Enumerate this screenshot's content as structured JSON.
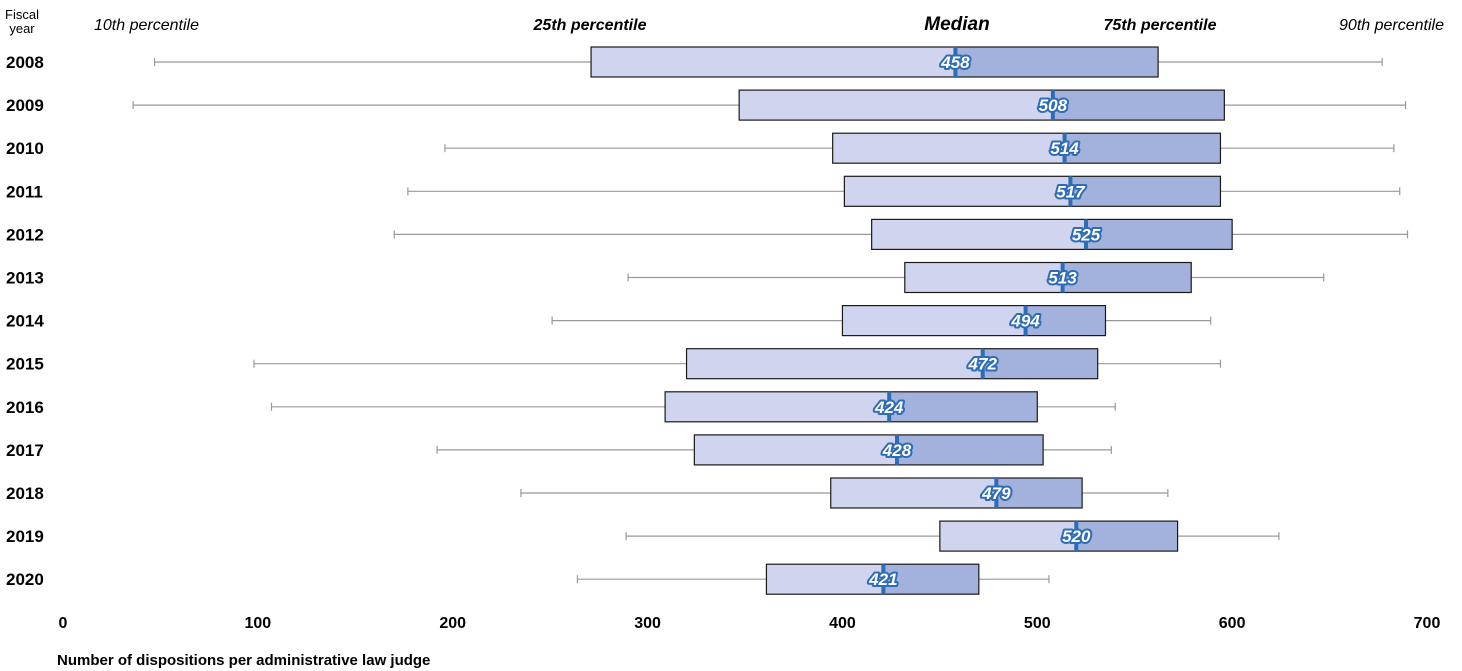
{
  "header": {
    "fiscal_year_line1": "Fiscal",
    "fiscal_year_line2": "year",
    "p10": "10th percentile",
    "p25": "25th percentile",
    "median": "Median",
    "p75": "75th percentile",
    "p90": "90th percentile"
  },
  "colors": {
    "box_lower": "#d0d4ee",
    "box_upper": "#a3b1dd",
    "box_border": "#1a1a1a",
    "whisker": "#999999",
    "median_mark": "#2e6db5"
  },
  "chart_data": {
    "type": "boxplot",
    "orientation": "horizontal",
    "xlabel": "Number of dispositions per administrative law judge",
    "xlim": [
      0,
      700
    ],
    "xticks": [
      0,
      100,
      200,
      300,
      400,
      500,
      600,
      700
    ],
    "rows": [
      {
        "year": "2008",
        "p10": 47,
        "p25": 271,
        "median": 458,
        "p75": 562,
        "p90": 677
      },
      {
        "year": "2009",
        "p10": 36,
        "p25": 347,
        "median": 508,
        "p75": 596,
        "p90": 689
      },
      {
        "year": "2010",
        "p10": 196,
        "p25": 395,
        "median": 514,
        "p75": 594,
        "p90": 683
      },
      {
        "year": "2011",
        "p10": 177,
        "p25": 401,
        "median": 517,
        "p75": 594,
        "p90": 686
      },
      {
        "year": "2012",
        "p10": 170,
        "p25": 415,
        "median": 525,
        "p75": 600,
        "p90": 690
      },
      {
        "year": "2013",
        "p10": 290,
        "p25": 432,
        "median": 513,
        "p75": 579,
        "p90": 647
      },
      {
        "year": "2014",
        "p10": 251,
        "p25": 400,
        "median": 494,
        "p75": 535,
        "p90": 589
      },
      {
        "year": "2015",
        "p10": 98,
        "p25": 320,
        "median": 472,
        "p75": 531,
        "p90": 594
      },
      {
        "year": "2016",
        "p10": 107,
        "p25": 309,
        "median": 424,
        "p75": 500,
        "p90": 540
      },
      {
        "year": "2017",
        "p10": 192,
        "p25": 324,
        "median": 428,
        "p75": 503,
        "p90": 538
      },
      {
        "year": "2018",
        "p10": 235,
        "p25": 394,
        "median": 479,
        "p75": 523,
        "p90": 567
      },
      {
        "year": "2019",
        "p10": 289,
        "p25": 450,
        "median": 520,
        "p75": 572,
        "p90": 624
      },
      {
        "year": "2020",
        "p10": 264,
        "p25": 361,
        "median": 421,
        "p75": 470,
        "p90": 506
      }
    ]
  }
}
